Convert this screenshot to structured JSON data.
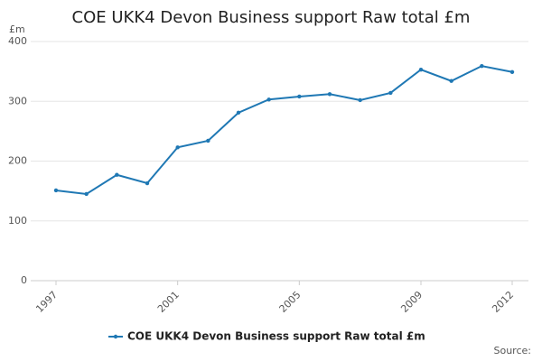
{
  "chart_data": {
    "type": "line",
    "title": "COE UKK4 Devon Business support Raw total £m",
    "y_label": "£m",
    "source": "Source:",
    "x": [
      1997,
      1998,
      1999,
      2000,
      2001,
      2002,
      2003,
      2004,
      2005,
      2006,
      2007,
      2008,
      2009,
      2010,
      2011,
      2012
    ],
    "series": [
      {
        "name": "COE UKK4 Devon Business support Raw total £m",
        "color": "#1f78b4",
        "values": [
          151,
          145,
          177,
          163,
          223,
          234,
          281,
          303,
          308,
          312,
          302,
          314,
          353,
          334,
          359,
          349
        ]
      }
    ],
    "xlim": [
      1997,
      2012
    ],
    "xticks": [
      1997,
      2001,
      2005,
      2009,
      2012
    ],
    "ylim": [
      0,
      400
    ],
    "yticks": [
      0,
      100,
      200,
      300,
      400
    ],
    "grid": true
  }
}
